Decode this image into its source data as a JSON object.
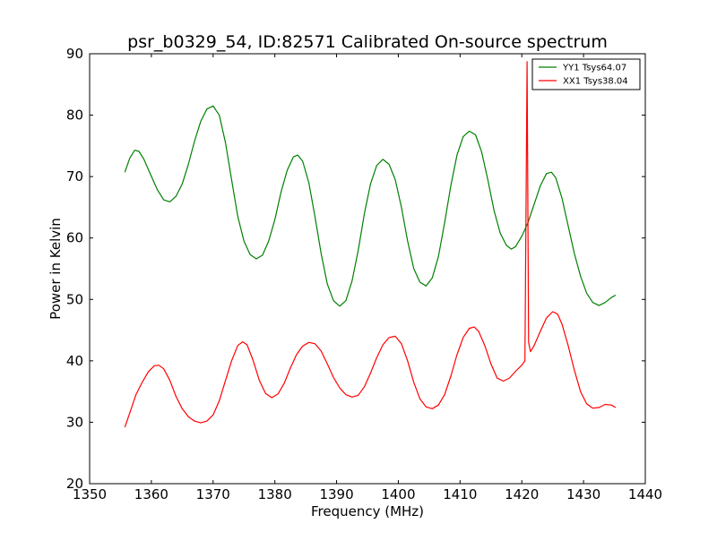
{
  "chart_data": {
    "type": "line",
    "title": "psr_b0329_54, ID:82571 Calibrated On-source spectrum",
    "xlabel": "Frequency (MHz)",
    "ylabel": "Power in Kelvin",
    "xlim": [
      1350,
      1440
    ],
    "ylim": [
      20,
      90
    ],
    "xticks": [
      1350,
      1360,
      1370,
      1380,
      1390,
      1400,
      1410,
      1420,
      1430,
      1440
    ],
    "yticks": [
      20,
      30,
      40,
      50,
      60,
      70,
      80,
      90
    ],
    "grid": false,
    "legend_position": "top-right",
    "series": [
      {
        "name": "YY1 Tsys64.07",
        "color": "#008000",
        "points": [
          [
            1355.7,
            70.7
          ],
          [
            1356.5,
            73.0
          ],
          [
            1357.3,
            74.3
          ],
          [
            1358.0,
            74.1
          ],
          [
            1358.8,
            72.8
          ],
          [
            1359.8,
            70.5
          ],
          [
            1361.0,
            67.8
          ],
          [
            1362.0,
            66.2
          ],
          [
            1363.0,
            65.9
          ],
          [
            1364.0,
            66.8
          ],
          [
            1365.0,
            68.8
          ],
          [
            1366.0,
            72.0
          ],
          [
            1367.0,
            75.8
          ],
          [
            1368.0,
            79.0
          ],
          [
            1369.0,
            81.0
          ],
          [
            1370.0,
            81.5
          ],
          [
            1371.0,
            80.0
          ],
          [
            1372.0,
            75.5
          ],
          [
            1373.0,
            69.5
          ],
          [
            1374.0,
            63.5
          ],
          [
            1375.0,
            59.5
          ],
          [
            1376.0,
            57.3
          ],
          [
            1377.0,
            56.6
          ],
          [
            1378.0,
            57.2
          ],
          [
            1379.0,
            59.5
          ],
          [
            1380.0,
            63.0
          ],
          [
            1381.0,
            67.5
          ],
          [
            1382.0,
            71.0
          ],
          [
            1383.0,
            73.2
          ],
          [
            1383.7,
            73.5
          ],
          [
            1384.5,
            72.5
          ],
          [
            1385.5,
            69.0
          ],
          [
            1386.5,
            63.5
          ],
          [
            1387.5,
            57.5
          ],
          [
            1388.5,
            52.5
          ],
          [
            1389.5,
            49.8
          ],
          [
            1390.5,
            48.9
          ],
          [
            1391.5,
            49.8
          ],
          [
            1392.5,
            53.0
          ],
          [
            1393.5,
            58.0
          ],
          [
            1394.5,
            64.0
          ],
          [
            1395.5,
            68.8
          ],
          [
            1396.5,
            71.8
          ],
          [
            1397.5,
            72.8
          ],
          [
            1398.5,
            72.0
          ],
          [
            1399.5,
            69.5
          ],
          [
            1400.5,
            65.0
          ],
          [
            1401.5,
            59.5
          ],
          [
            1402.5,
            55.0
          ],
          [
            1403.5,
            52.8
          ],
          [
            1404.5,
            52.2
          ],
          [
            1405.5,
            53.5
          ],
          [
            1406.5,
            57.0
          ],
          [
            1407.5,
            62.5
          ],
          [
            1408.5,
            68.5
          ],
          [
            1409.5,
            73.5
          ],
          [
            1410.5,
            76.5
          ],
          [
            1411.5,
            77.4
          ],
          [
            1412.5,
            76.8
          ],
          [
            1413.5,
            74.0
          ],
          [
            1414.5,
            69.5
          ],
          [
            1415.5,
            64.5
          ],
          [
            1416.5,
            60.8
          ],
          [
            1417.5,
            58.8
          ],
          [
            1418.3,
            58.2
          ],
          [
            1419.0,
            58.6
          ],
          [
            1420.0,
            60.3
          ],
          [
            1421.0,
            62.5
          ],
          [
            1422.0,
            65.5
          ],
          [
            1423.0,
            68.5
          ],
          [
            1424.0,
            70.5
          ],
          [
            1424.8,
            70.7
          ],
          [
            1425.5,
            69.8
          ],
          [
            1426.5,
            66.5
          ],
          [
            1427.5,
            62.0
          ],
          [
            1428.5,
            57.5
          ],
          [
            1429.5,
            53.8
          ],
          [
            1430.5,
            51.0
          ],
          [
            1431.5,
            49.5
          ],
          [
            1432.5,
            49.0
          ],
          [
            1433.5,
            49.5
          ],
          [
            1434.5,
            50.3
          ],
          [
            1435.2,
            50.7
          ]
        ]
      },
      {
        "name": "XX1 Tsys38.04",
        "color": "#ff0000",
        "points": [
          [
            1355.7,
            29.2
          ],
          [
            1356.5,
            31.5
          ],
          [
            1357.5,
            34.5
          ],
          [
            1358.5,
            36.5
          ],
          [
            1359.5,
            38.2
          ],
          [
            1360.5,
            39.2
          ],
          [
            1361.2,
            39.3
          ],
          [
            1362.0,
            38.7
          ],
          [
            1363.0,
            36.8
          ],
          [
            1364.0,
            34.2
          ],
          [
            1365.0,
            32.2
          ],
          [
            1366.0,
            30.9
          ],
          [
            1367.0,
            30.2
          ],
          [
            1368.0,
            29.9
          ],
          [
            1369.0,
            30.2
          ],
          [
            1370.0,
            31.2
          ],
          [
            1371.0,
            33.5
          ],
          [
            1372.0,
            36.8
          ],
          [
            1373.0,
            40.0
          ],
          [
            1374.0,
            42.5
          ],
          [
            1374.8,
            43.1
          ],
          [
            1375.5,
            42.6
          ],
          [
            1376.5,
            40.0
          ],
          [
            1377.5,
            36.8
          ],
          [
            1378.5,
            34.7
          ],
          [
            1379.5,
            34.0
          ],
          [
            1380.5,
            34.6
          ],
          [
            1381.5,
            36.3
          ],
          [
            1382.5,
            38.8
          ],
          [
            1383.5,
            41.0
          ],
          [
            1384.5,
            42.4
          ],
          [
            1385.5,
            43.0
          ],
          [
            1386.5,
            42.8
          ],
          [
            1387.5,
            41.6
          ],
          [
            1388.5,
            39.5
          ],
          [
            1389.5,
            37.3
          ],
          [
            1390.5,
            35.6
          ],
          [
            1391.5,
            34.5
          ],
          [
            1392.5,
            34.1
          ],
          [
            1393.5,
            34.4
          ],
          [
            1394.5,
            35.8
          ],
          [
            1395.5,
            38.0
          ],
          [
            1396.5,
            40.5
          ],
          [
            1397.5,
            42.6
          ],
          [
            1398.5,
            43.8
          ],
          [
            1399.5,
            44.0
          ],
          [
            1400.5,
            42.8
          ],
          [
            1401.5,
            40.0
          ],
          [
            1402.5,
            36.5
          ],
          [
            1403.5,
            33.8
          ],
          [
            1404.5,
            32.5
          ],
          [
            1405.5,
            32.2
          ],
          [
            1406.5,
            32.8
          ],
          [
            1407.5,
            34.5
          ],
          [
            1408.5,
            37.5
          ],
          [
            1409.5,
            41.0
          ],
          [
            1410.5,
            43.8
          ],
          [
            1411.5,
            45.3
          ],
          [
            1412.3,
            45.5
          ],
          [
            1413.0,
            44.8
          ],
          [
            1414.0,
            42.5
          ],
          [
            1415.0,
            39.5
          ],
          [
            1416.0,
            37.2
          ],
          [
            1417.0,
            36.7
          ],
          [
            1418.0,
            37.2
          ],
          [
            1419.0,
            38.3
          ],
          [
            1420.0,
            39.3
          ],
          [
            1420.5,
            40.0
          ],
          [
            1420.85,
            88.7
          ],
          [
            1421.1,
            43.0
          ],
          [
            1421.4,
            41.5
          ],
          [
            1422.0,
            42.5
          ],
          [
            1423.0,
            44.8
          ],
          [
            1424.0,
            47.0
          ],
          [
            1425.0,
            48.0
          ],
          [
            1425.8,
            47.6
          ],
          [
            1426.5,
            46.0
          ],
          [
            1427.5,
            42.5
          ],
          [
            1428.5,
            38.5
          ],
          [
            1429.5,
            35.0
          ],
          [
            1430.5,
            33.0
          ],
          [
            1431.5,
            32.3
          ],
          [
            1432.5,
            32.4
          ],
          [
            1433.5,
            32.9
          ],
          [
            1434.5,
            32.8
          ],
          [
            1435.2,
            32.4
          ]
        ]
      }
    ]
  }
}
